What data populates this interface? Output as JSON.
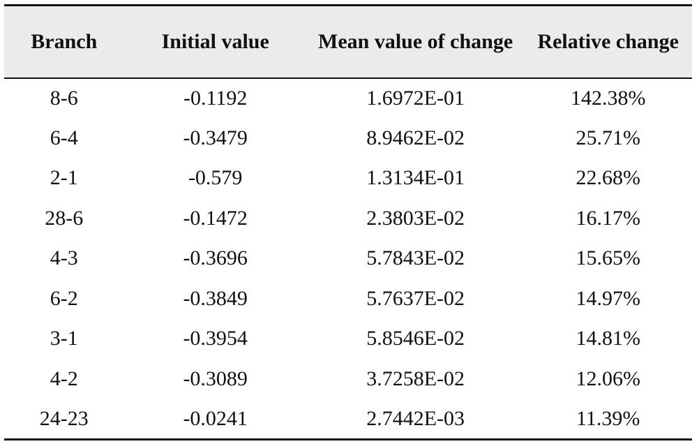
{
  "table": {
    "headers": [
      "Branch",
      "Initial value",
      "Mean value of change",
      "Relative change"
    ],
    "rows": [
      [
        "8-6",
        "-0.1192",
        "1.6972E-01",
        "142.38%"
      ],
      [
        "6-4",
        "-0.3479",
        "8.9462E-02",
        "25.71%"
      ],
      [
        "2-1",
        "-0.579",
        "1.3134E-01",
        "22.68%"
      ],
      [
        "28-6",
        "-0.1472",
        "2.3803E-02",
        "16.17%"
      ],
      [
        "4-3",
        "-0.3696",
        "5.7843E-02",
        "15.65%"
      ],
      [
        "6-2",
        "-0.3849",
        "5.7637E-02",
        "14.97%"
      ],
      [
        "3-1",
        "-0.3954",
        "5.8546E-02",
        "14.81%"
      ],
      [
        "4-2",
        "-0.3089",
        "3.7258E-02",
        "12.06%"
      ],
      [
        "24-23",
        "-0.0241",
        "2.7442E-03",
        "11.39%"
      ]
    ]
  }
}
